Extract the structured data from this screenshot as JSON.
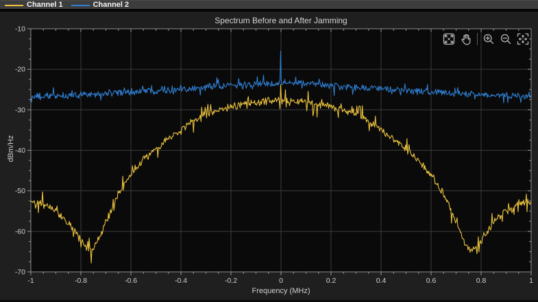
{
  "legend": {
    "items": [
      {
        "label": "Channel 1",
        "color": "#edc43f"
      },
      {
        "label": "Channel 2",
        "color": "#2f7fd2"
      }
    ]
  },
  "toolbar": {
    "icons": [
      "restore-view",
      "pan",
      "zoom-in",
      "zoom-out",
      "expand"
    ]
  },
  "chart_data": {
    "type": "line",
    "title": "Spectrum Before and After Jamming",
    "xlabel": "Frequency (MHz)",
    "ylabel": "dBm/Hz",
    "xlim": [
      -1,
      1
    ],
    "ylim": [
      -70,
      -10
    ],
    "xticks": [
      -1,
      -0.8,
      -0.6,
      -0.4,
      -0.2,
      0,
      0.2,
      0.4,
      0.6,
      0.8,
      1
    ],
    "xtick_labels": [
      "-1",
      "-0.8",
      "-0.6",
      "-0.4",
      "-0.2",
      "0",
      "0.2",
      "0.4",
      "0.6",
      "0.8",
      "1"
    ],
    "yticks": [
      -70,
      -60,
      -50,
      -40,
      -30,
      -20,
      -10
    ],
    "ytick_labels": [
      "-70",
      "-60",
      "-50",
      "-40",
      "-30",
      "-20",
      "-10"
    ],
    "x_minor_step": 0.05,
    "y_minor_step": 2.5,
    "grid": true,
    "legend_position": "top-bar",
    "background": "#0a0a0a",
    "grid_color": "#3c3c3c",
    "axis_color": "#8f8f8f",
    "tick_color": "#9a9a9a",
    "text_color": "#cfcfcf",
    "series": [
      {
        "name": "Channel 1",
        "color": "#edc43f",
        "noise_db": 1.1,
        "noise_spike_db": 2.6,
        "noise_spike_prob": 0.12,
        "seed": 42,
        "spike": {
          "x": 0,
          "value": -23.8
        },
        "envelope": [
          [
            -1.0,
            -52.5
          ],
          [
            -0.97,
            -52.8
          ],
          [
            -0.94,
            -53.6
          ],
          [
            -0.9,
            -55.0
          ],
          [
            -0.86,
            -57.2
          ],
          [
            -0.82,
            -60.5
          ],
          [
            -0.79,
            -63.0
          ],
          [
            -0.76,
            -64.8
          ],
          [
            -0.74,
            -63.5
          ],
          [
            -0.72,
            -61.0
          ],
          [
            -0.7,
            -57.5
          ],
          [
            -0.68,
            -55.0
          ],
          [
            -0.66,
            -52.0
          ],
          [
            -0.63,
            -48.8
          ],
          [
            -0.6,
            -46.0
          ],
          [
            -0.57,
            -43.8
          ],
          [
            -0.54,
            -41.8
          ],
          [
            -0.5,
            -39.8
          ],
          [
            -0.46,
            -37.8
          ],
          [
            -0.42,
            -35.8
          ],
          [
            -0.38,
            -34.0
          ],
          [
            -0.34,
            -32.3
          ],
          [
            -0.3,
            -31.1
          ],
          [
            -0.26,
            -30.3
          ],
          [
            -0.22,
            -29.6
          ],
          [
            -0.18,
            -29.0
          ],
          [
            -0.14,
            -28.5
          ],
          [
            -0.1,
            -28.1
          ],
          [
            -0.06,
            -27.8
          ],
          [
            0.0,
            -27.6
          ],
          [
            0.06,
            -27.8
          ],
          [
            0.1,
            -28.1
          ],
          [
            0.14,
            -28.5
          ],
          [
            0.18,
            -29.0
          ],
          [
            0.22,
            -29.6
          ],
          [
            0.26,
            -30.3
          ],
          [
            0.3,
            -31.1
          ],
          [
            0.34,
            -32.3
          ],
          [
            0.38,
            -34.0
          ],
          [
            0.42,
            -35.8
          ],
          [
            0.46,
            -37.8
          ],
          [
            0.5,
            -39.8
          ],
          [
            0.54,
            -41.8
          ],
          [
            0.57,
            -43.8
          ],
          [
            0.6,
            -46.0
          ],
          [
            0.63,
            -48.8
          ],
          [
            0.66,
            -52.0
          ],
          [
            0.68,
            -55.0
          ],
          [
            0.7,
            -57.5
          ],
          [
            0.72,
            -61.0
          ],
          [
            0.74,
            -63.5
          ],
          [
            0.76,
            -64.8
          ],
          [
            0.79,
            -63.0
          ],
          [
            0.82,
            -60.5
          ],
          [
            0.86,
            -57.2
          ],
          [
            0.9,
            -55.0
          ],
          [
            0.94,
            -53.6
          ],
          [
            0.97,
            -52.8
          ],
          [
            1.0,
            -52.5
          ]
        ]
      },
      {
        "name": "Channel 2",
        "color": "#2f7fd2",
        "noise_db": 1.0,
        "noise_spike_db": 1.9,
        "noise_spike_prob": 0.12,
        "seed": 1234,
        "spike": {
          "x": 0,
          "value": -15.5
        },
        "envelope": [
          [
            -1.0,
            -26.8
          ],
          [
            -0.8,
            -26.3
          ],
          [
            -0.6,
            -25.6
          ],
          [
            -0.4,
            -24.8
          ],
          [
            -0.3,
            -24.4
          ],
          [
            -0.2,
            -24.0
          ],
          [
            -0.1,
            -23.6
          ],
          [
            0.0,
            -23.4
          ],
          [
            0.1,
            -23.6
          ],
          [
            0.2,
            -24.0
          ],
          [
            0.3,
            -24.4
          ],
          [
            0.4,
            -24.8
          ],
          [
            0.6,
            -25.6
          ],
          [
            0.8,
            -26.3
          ],
          [
            1.0,
            -26.8
          ]
        ]
      }
    ]
  }
}
